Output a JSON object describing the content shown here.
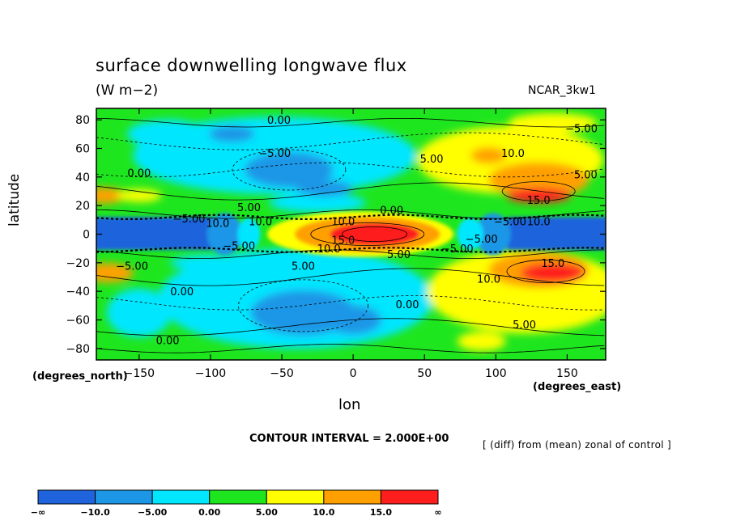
{
  "title": "surface downwelling longwave flux",
  "units": "(W m−2)",
  "case_name": "NCAR_3kw1",
  "ylabel": "latitude",
  "ylabel_units": "(degrees_north)",
  "xlabel": "lon",
  "xlabel_units": "(degrees_east)",
  "contour_interval": "CONTOUR INTERVAL = 2.000E+00",
  "diff_note": "[ (diff) from (mean) zonal of control ]",
  "chart_data": {
    "type": "heatmap",
    "xlim": [
      -180,
      177
    ],
    "ylim": [
      -88,
      88
    ],
    "x_ticks": [
      -150,
      -100,
      -50,
      0,
      50,
      100,
      150
    ],
    "x_tick_labels": [
      "−150",
      "−100",
      "−50",
      "0",
      "50",
      "100",
      "150"
    ],
    "y_ticks": [
      -80,
      -60,
      -40,
      -20,
      0,
      20,
      40,
      60,
      80
    ],
    "y_tick_labels": [
      "−80",
      "−60",
      "−40",
      "−20",
      "0",
      "20",
      "40",
      "60",
      "80"
    ],
    "contour_labels": [
      {
        "text": "0.00",
        "x": -52,
        "y": 80
      },
      {
        "text": "−5.00",
        "x": -55,
        "y": 57
      },
      {
        "text": "0.00",
        "x": -150,
        "y": 43
      },
      {
        "text": "5.00",
        "x": 55,
        "y": 53
      },
      {
        "text": "10.0",
        "x": 112,
        "y": 57
      },
      {
        "text": "−5.00",
        "x": 160,
        "y": 74
      },
      {
        "text": "5.00",
        "x": 163,
        "y": 42
      },
      {
        "text": "0.00",
        "x": 27,
        "y": 17
      },
      {
        "text": "5.00",
        "x": -73,
        "y": 19
      },
      {
        "text": "15.0",
        "x": 130,
        "y": 24
      },
      {
        "text": "−5.00",
        "x": -115,
        "y": 11
      },
      {
        "text": "10.0",
        "x": -95,
        "y": 8
      },
      {
        "text": "10.0",
        "x": -65,
        "y": 9
      },
      {
        "text": "10.0",
        "x": -7,
        "y": 9
      },
      {
        "text": "−5.00",
        "x": 110,
        "y": 9
      },
      {
        "text": "10.0",
        "x": 130,
        "y": 9
      },
      {
        "text": "15.0",
        "x": -7,
        "y": -4
      },
      {
        "text": "10.0",
        "x": -17,
        "y": -10
      },
      {
        "text": "−5.00",
        "x": -80,
        "y": -8
      },
      {
        "text": "−5.00",
        "x": 73,
        "y": -10
      },
      {
        "text": "−5.00",
        "x": 90,
        "y": -3
      },
      {
        "text": "5.00",
        "x": 32,
        "y": -14
      },
      {
        "text": "15.0",
        "x": 140,
        "y": -20
      },
      {
        "text": "−5.00",
        "x": -155,
        "y": -22
      },
      {
        "text": "5.00",
        "x": -35,
        "y": -22
      },
      {
        "text": "10.0",
        "x": 95,
        "y": -31
      },
      {
        "text": "0.00",
        "x": -120,
        "y": -40
      },
      {
        "text": "0.00",
        "x": 38,
        "y": -49
      },
      {
        "text": "5.00",
        "x": 120,
        "y": -63
      },
      {
        "text": "0.00",
        "x": -130,
        "y": -74
      }
    ],
    "legend": {
      "colors": [
        "#1f64dc",
        "#1e96e6",
        "#00e6ff",
        "#1ee61e",
        "#ffff00",
        "#ffa000",
        "#ff1e1e"
      ],
      "labels": [
        "−∞",
        "−10.0",
        "−5.00",
        "0.00",
        "5.00",
        "10.0",
        "15.0",
        "∞"
      ]
    }
  }
}
